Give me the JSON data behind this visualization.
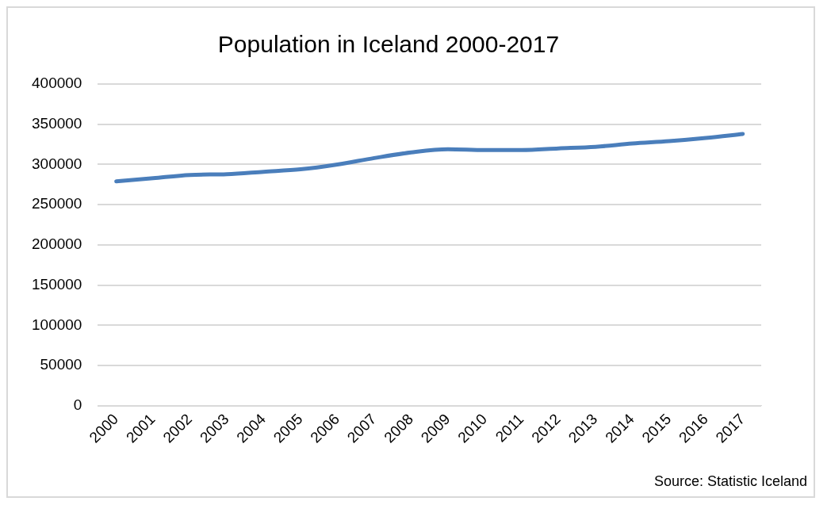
{
  "chart_data": {
    "type": "line",
    "title": "Population in Iceland 2000-2017",
    "categories": [
      "2000",
      "2001",
      "2002",
      "2003",
      "2004",
      "2005",
      "2006",
      "2007",
      "2008",
      "2009",
      "2010",
      "2011",
      "2012",
      "2013",
      "2014",
      "2015",
      "2016",
      "2017"
    ],
    "series": [
      {
        "color": "#4a7ebb",
        "values": [
          279000,
          283000,
          287000,
          288000,
          291000,
          294000,
          300000,
          308000,
          315000,
          319000,
          318000,
          318000,
          320000,
          322000,
          326000,
          329000,
          333000,
          338000
        ]
      }
    ],
    "ylim": [
      0,
      400000
    ],
    "yticks": [
      0,
      50000,
      100000,
      150000,
      200000,
      250000,
      300000,
      350000,
      400000
    ],
    "grid": "y",
    "legend": false,
    "marker": "none",
    "line_style": "solid",
    "annotations": [
      "Source: Statistic Iceland"
    ]
  }
}
